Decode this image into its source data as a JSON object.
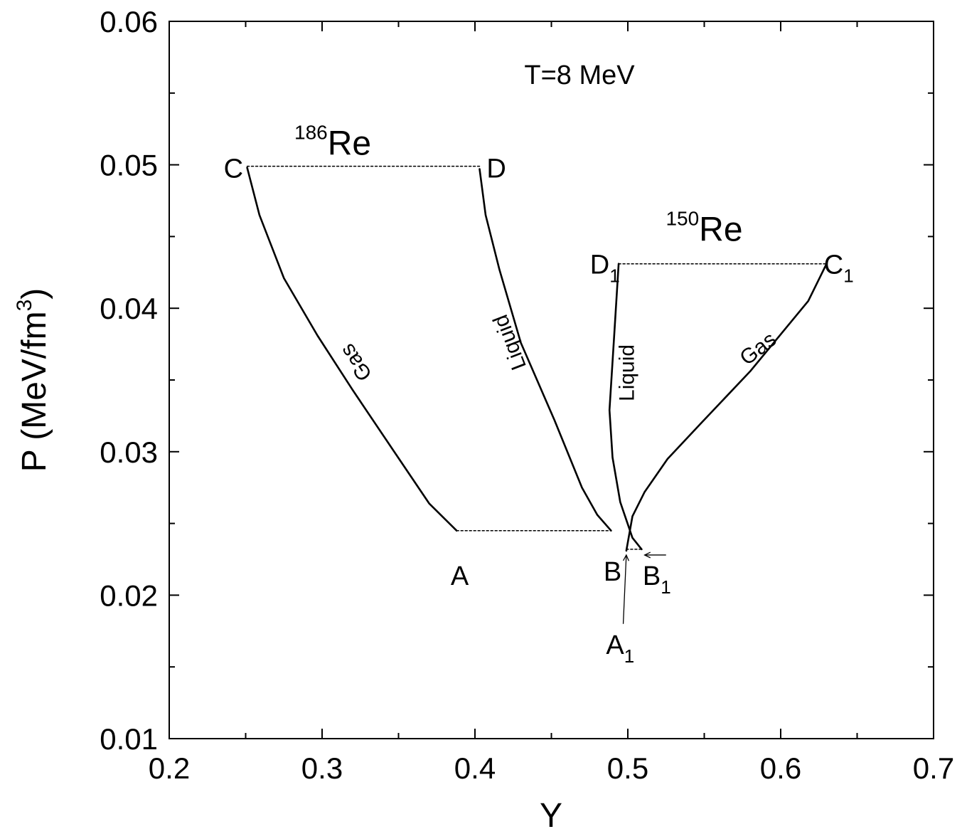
{
  "chart_data": {
    "type": "line",
    "title": "",
    "xlabel": "Y",
    "ylabel": "P (MeV/fm",
    "ylabel_sup": "3",
    "ylabel_close": ")",
    "xlim": [
      0.2,
      0.7
    ],
    "ylim": [
      0.01,
      0.06
    ],
    "x_ticks": [
      "0.2",
      "0.3",
      "0.4",
      "0.5",
      "0.6",
      "0.7"
    ],
    "y_ticks": [
      "0.01",
      "0.02",
      "0.03",
      "0.04",
      "0.05",
      "0.06"
    ],
    "grid": false,
    "legend": "none",
    "temperature_label": "T=8 MeV",
    "nuclei": [
      {
        "mass": "186",
        "element": "Re",
        "x": 0.307,
        "y": 0.0515
      },
      {
        "mass": "150",
        "element": "Re",
        "x": 0.55,
        "y": 0.0455
      }
    ],
    "series": [
      {
        "label": "Gas",
        "style": "solid",
        "label_at": {
          "x": 0.326,
          "y": 0.0365,
          "rotate": 236
        },
        "points": [
          [
            0.251,
            0.0498
          ],
          [
            0.259,
            0.0465
          ],
          [
            0.275,
            0.0421
          ],
          [
            0.297,
            0.0381
          ],
          [
            0.32,
            0.0343
          ],
          [
            0.351,
            0.0294
          ],
          [
            0.37,
            0.0264
          ],
          [
            0.388,
            0.0245
          ]
        ]
      },
      {
        "label": "Liquid",
        "style": "solid",
        "label_at": {
          "x": 0.427,
          "y": 0.0378,
          "rotate": 249
        },
        "points": [
          [
            0.403,
            0.0497
          ],
          [
            0.407,
            0.0465
          ],
          [
            0.416,
            0.0427
          ],
          [
            0.43,
            0.0376
          ],
          [
            0.452,
            0.0322
          ],
          [
            0.47,
            0.0275
          ],
          [
            0.48,
            0.0256
          ],
          [
            0.489,
            0.0245
          ]
        ]
      },
      {
        "label": "",
        "style": "dashed",
        "points": [
          [
            0.251,
            0.0499
          ],
          [
            0.403,
            0.0499
          ]
        ]
      },
      {
        "label": "",
        "style": "dashed",
        "points": [
          [
            0.388,
            0.0245
          ],
          [
            0.489,
            0.0245
          ]
        ]
      },
      {
        "label": "Liquid",
        "style": "solid",
        "label_at": {
          "x": 0.504,
          "y": 0.0355,
          "rotate": 270
        },
        "points": [
          [
            0.494,
            0.0431
          ],
          [
            0.491,
            0.038
          ],
          [
            0.488,
            0.0329
          ],
          [
            0.49,
            0.0296
          ],
          [
            0.495,
            0.0265
          ],
          [
            0.503,
            0.024
          ],
          [
            0.509,
            0.0232
          ]
        ]
      },
      {
        "label": "Gas",
        "style": "solid",
        "label_at": {
          "x": 0.588,
          "y": 0.0368,
          "rotate": -38
        },
        "points": [
          [
            0.63,
            0.0431
          ],
          [
            0.618,
            0.0405
          ],
          [
            0.58,
            0.0356
          ],
          [
            0.548,
            0.032
          ],
          [
            0.526,
            0.0295
          ],
          [
            0.511,
            0.0272
          ],
          [
            0.503,
            0.0255
          ],
          [
            0.499,
            0.0231
          ]
        ]
      },
      {
        "label": "",
        "style": "dashed",
        "points": [
          [
            0.494,
            0.0431
          ],
          [
            0.63,
            0.0431
          ]
        ]
      },
      {
        "label": "",
        "style": "dashed",
        "points": [
          [
            0.499,
            0.0232
          ],
          [
            0.509,
            0.0232
          ]
        ]
      }
    ],
    "point_labels": [
      {
        "text": "C",
        "sub": "",
        "x": 0.242,
        "y": 0.0498
      },
      {
        "text": "D",
        "sub": "",
        "x": 0.414,
        "y": 0.0498
      },
      {
        "text": "A",
        "sub": "",
        "x": 0.39,
        "y": 0.0214
      },
      {
        "text": "B",
        "sub": "",
        "x": 0.49,
        "y": 0.0217
      },
      {
        "text": "D",
        "sub": "1",
        "x": 0.485,
        "y": 0.0431
      },
      {
        "text": "C",
        "sub": "1",
        "x": 0.638,
        "y": 0.0431
      },
      {
        "text": "B",
        "sub": "1",
        "x": 0.519,
        "y": 0.0214
      },
      {
        "text": "A",
        "sub": "1",
        "x": 0.495,
        "y": 0.0166
      }
    ],
    "arrows": [
      {
        "from": [
          0.497,
          0.018
        ],
        "to": [
          0.499,
          0.0228
        ]
      },
      {
        "from": [
          0.525,
          0.0228
        ],
        "to": [
          0.511,
          0.0228
        ]
      }
    ]
  }
}
